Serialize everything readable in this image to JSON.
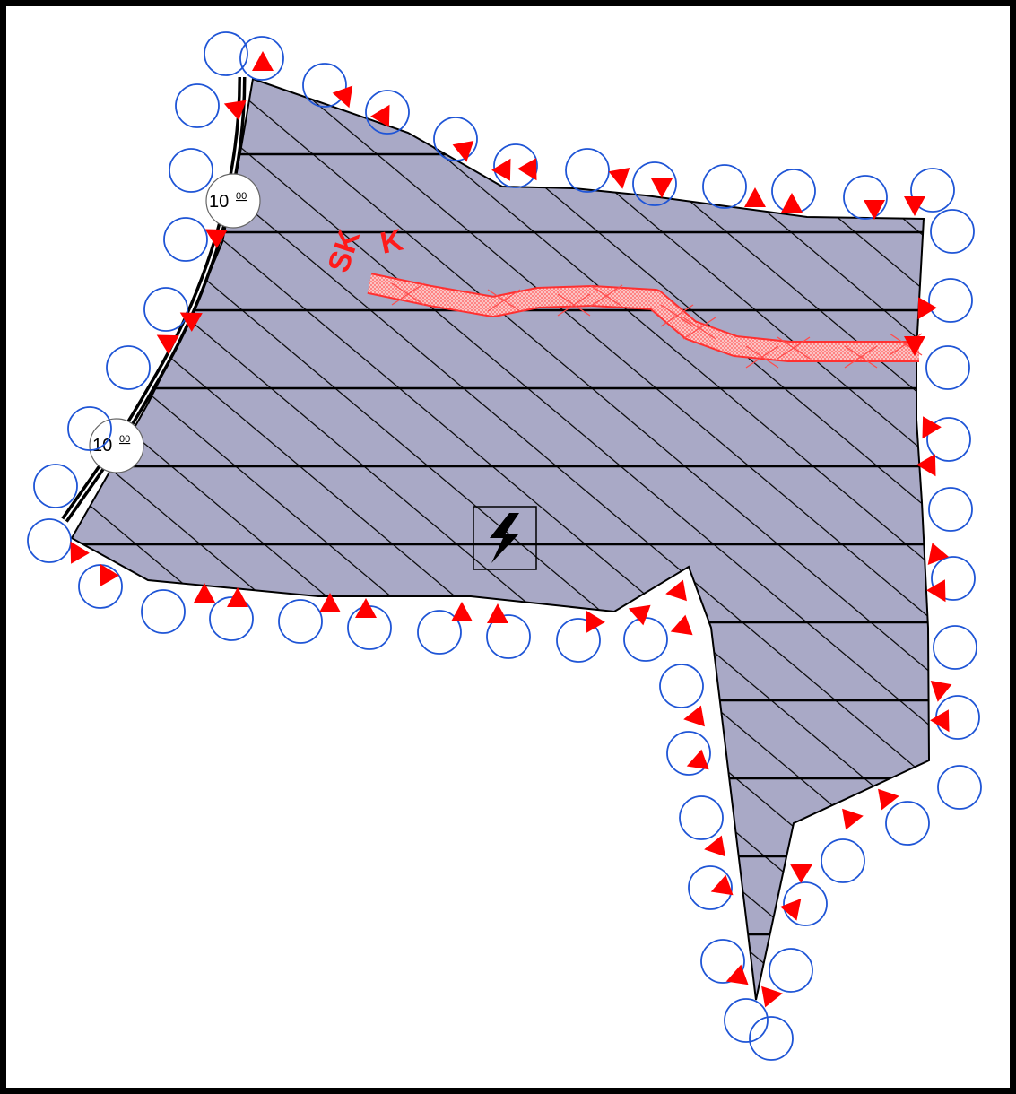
{
  "map": {
    "colors": {
      "zone_fill": "#a9a9c6",
      "hatch": "#000000",
      "marker_circle": "#1f55d6",
      "marker_arrow": "#ff0000",
      "corridor_fill": "#f7b2b2",
      "corridor_edge": "#ff3030",
      "label_red": "#ff1a1a"
    },
    "road_labels": [
      {
        "value": "10",
        "sup": "00"
      },
      {
        "value": "10",
        "sup": "00"
      }
    ],
    "corridor": {
      "code_left": "SK",
      "code_right": "K",
      "label_color": "#ff1a1a"
    },
    "symbols": {
      "center": "lightning-bolt-icon"
    }
  }
}
